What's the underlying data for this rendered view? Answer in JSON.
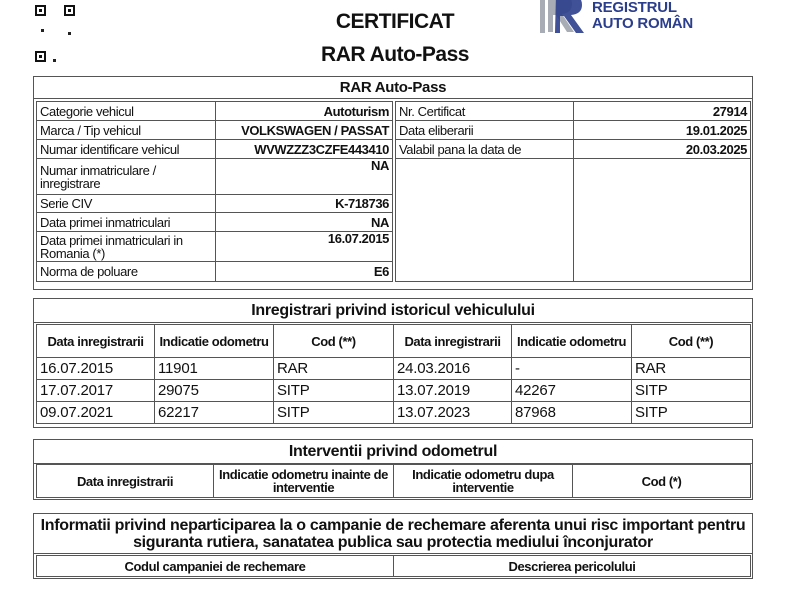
{
  "header": {
    "title": "CERTIFICAT",
    "subtitle": "RAR Auto-Pass",
    "logo": {
      "line1": "REGISTRUL",
      "line2": "AUTO ROMÂN",
      "mark": "RAR",
      "color": "#2b3e8c",
      "mark_grey": "#a8adb5"
    },
    "qr_code": "qr-code"
  },
  "vehicle": {
    "section_title": "RAR Auto-Pass",
    "left": [
      {
        "label": "Categorie vehicul",
        "value": "Autoturism"
      },
      {
        "label": "Marca / Tip vehicul",
        "value": "VOLKSWAGEN / PASSAT"
      },
      {
        "label": "Numar identificare vehicul",
        "value": "WVWZZZ3CZFE443410"
      },
      {
        "label": "Numar inmatriculare / inregistrare",
        "value": "NA"
      },
      {
        "label": "Serie CIV",
        "value": "K-718736"
      },
      {
        "label": "Data primei inmatriculari",
        "value": "NA"
      },
      {
        "label": "Data primei inmatriculari in Romania (*)",
        "value": "16.07.2015"
      },
      {
        "label": "Norma de poluare",
        "value": "E6"
      }
    ],
    "right": [
      {
        "label": "Nr. Certificat",
        "value": "27914"
      },
      {
        "label": "Data eliberarii",
        "value": "19.01.2025"
      },
      {
        "label": "Valabil pana la data de",
        "value": "20.03.2025"
      }
    ]
  },
  "history": {
    "section_title": "Inregistrari privind istoricul vehiculului",
    "columns": [
      "Data inregistrarii",
      "Indicatie odometru",
      "Cod (**)",
      "Data inregistrarii",
      "Indicatie odometru",
      "Cod (**)"
    ],
    "rows": [
      [
        "16.07.2015",
        "11901",
        "RAR",
        "24.03.2016",
        "-",
        "RAR"
      ],
      [
        "17.07.2017",
        "29075",
        "SITP",
        "13.07.2019",
        "42267",
        "SITP"
      ],
      [
        "09.07.2021",
        "62217",
        "SITP",
        "13.07.2023",
        "87968",
        "SITP"
      ]
    ]
  },
  "odometer": {
    "section_title": "Interventii privind odometrul",
    "columns": [
      "Data inregistrarii",
      "Indicatie odometru inainte de interventie",
      "Indicatie odometru dupa interventie",
      "Cod (*)"
    ]
  },
  "recall": {
    "section_title": "Informatii privind neparticiparea la o campanie de rechemare aferenta unui risc important pentru siguranta rutiera, sanatatea publica sau protectia mediului înconjurator",
    "columns": [
      "Codul campaniei de rechemare",
      "Descrierea pericolului"
    ]
  }
}
